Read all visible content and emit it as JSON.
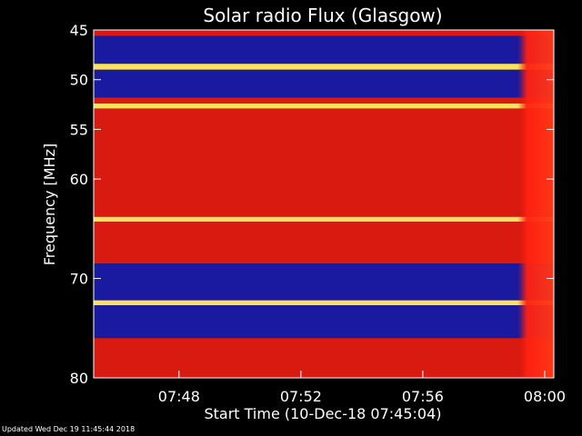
{
  "chart_data": {
    "type": "heatmap",
    "title": "Solar radio Flux (Glasgow)",
    "xlabel": "Start Time (10-Dec-18 07:45:04)",
    "ylabel": "Frequency [MHz]",
    "x_range_minutes": [
      "07:45:04",
      "08:00:10"
    ],
    "ylim": [
      45,
      80
    ],
    "y_ticks": [
      45,
      50,
      55,
      60,
      70,
      80
    ],
    "x_ticks": [
      "07:48",
      "07:52",
      "07:56",
      "08:00"
    ],
    "x_tick_minutes": [
      168,
      408,
      648,
      888
    ],
    "x_span_seconds": [
      0,
      906
    ],
    "grid": false,
    "colors": {
      "background": "#000000",
      "low": "#1a1aa0",
      "mid": "#d81a10",
      "high": "#ffe060"
    },
    "bands": [
      {
        "f0": 45.0,
        "f1": 45.6,
        "level": "mid"
      },
      {
        "f0": 45.6,
        "f1": 48.4,
        "level": "low"
      },
      {
        "f0": 48.4,
        "f1": 49.0,
        "level": "high"
      },
      {
        "f0": 49.0,
        "f1": 51.8,
        "level": "low"
      },
      {
        "f0": 51.8,
        "f1": 52.4,
        "level": "mid"
      },
      {
        "f0": 52.4,
        "f1": 52.9,
        "level": "high"
      },
      {
        "f0": 52.9,
        "f1": 63.8,
        "level": "mid"
      },
      {
        "f0": 63.8,
        "f1": 64.3,
        "level": "high"
      },
      {
        "f0": 64.3,
        "f1": 68.5,
        "level": "mid"
      },
      {
        "f0": 68.5,
        "f1": 72.2,
        "level": "low"
      },
      {
        "f0": 72.2,
        "f1": 72.7,
        "level": "high"
      },
      {
        "f0": 72.7,
        "f1": 76.0,
        "level": "low"
      },
      {
        "f0": 76.0,
        "f1": 80.0,
        "level": "mid"
      }
    ],
    "burst_start_seconds": 835
  },
  "footer": "Updated Wed Dec 19 11:45:44 2018"
}
